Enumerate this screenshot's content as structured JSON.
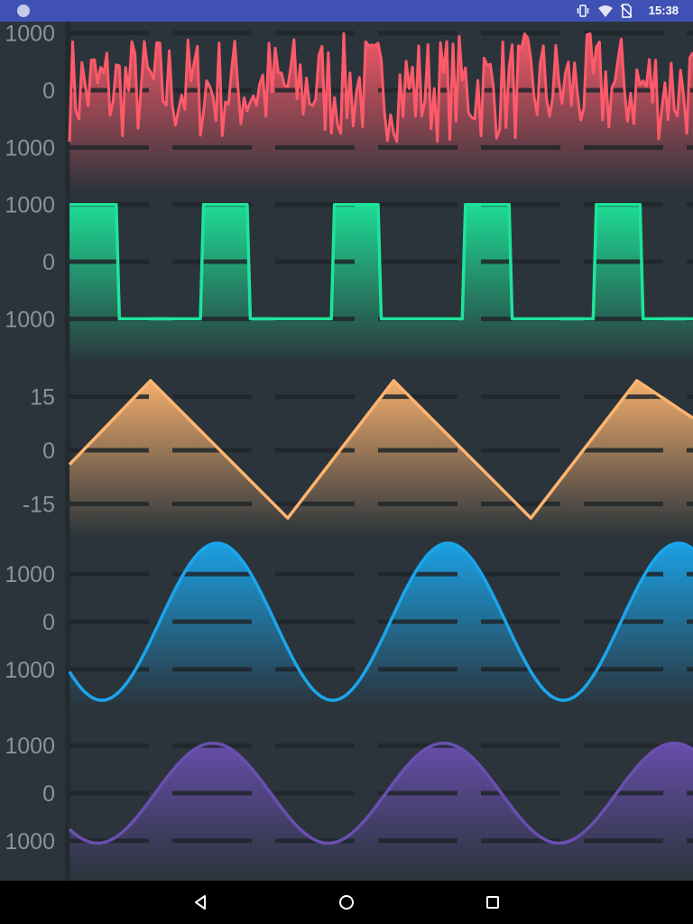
{
  "status_bar": {
    "time": "15:38",
    "icons": [
      "app-notification-icon",
      "vibrate-icon",
      "wifi-icon",
      "no-sim-icon"
    ]
  },
  "navigation_bar": {
    "buttons": [
      "back-icon",
      "home-icon",
      "recents-icon"
    ]
  },
  "colors": {
    "background": "#2b343b",
    "status_bar": "#3f51b5",
    "grid": "#1f262b",
    "noise": "#ff5a6a",
    "square": "#1de49a",
    "triangle": "#fdb46f",
    "sine": "#1aa6ec",
    "sine2": "#6a4fb0"
  },
  "chart_data": [
    {
      "type": "area",
      "name": "noise",
      "yticks": [
        1000,
        0,
        -1000
      ],
      "ytick_labels": [
        "1000",
        "0",
        "1000"
      ],
      "ylim": [
        -1800,
        1200
      ],
      "wave": "random",
      "samples": 200,
      "amplitude_range": [
        -900,
        1000
      ],
      "color": "#ff5a6a",
      "grid": true
    },
    {
      "type": "area",
      "name": "square",
      "yticks": [
        1000,
        0,
        -1000
      ],
      "ytick_labels": [
        "1000",
        "0",
        "1000"
      ],
      "ylim": [
        -1800,
        1200
      ],
      "wave": "square",
      "x": [
        0,
        0.075,
        0.21,
        0.285,
        0.42,
        0.495,
        0.63,
        0.705,
        0.84,
        0.915,
        1
      ],
      "values": [
        1000,
        -1000,
        1000,
        -1000,
        1000,
        -1000,
        1000,
        -1000,
        1000,
        -1000,
        1000
      ],
      "period": 0.21,
      "color": "#1de49a",
      "grid": true
    },
    {
      "type": "area",
      "name": "triangle",
      "yticks": [
        15,
        0,
        -15
      ],
      "ytick_labels": [
        "15",
        "0",
        "-15"
      ],
      "ylim": [
        -24,
        24
      ],
      "wave": "triangle",
      "x": [
        0,
        0.13,
        0.35,
        0.52,
        0.74,
        0.91,
        1
      ],
      "values": [
        -4,
        19.5,
        -19,
        19.5,
        -19,
        19.5,
        9
      ],
      "color": "#fdb46f",
      "grid": true
    },
    {
      "type": "area",
      "name": "sine",
      "yticks": [
        1000,
        0,
        -1000
      ],
      "ytick_labels": [
        "1000",
        "0",
        "1000"
      ],
      "ylim": [
        -1800,
        1800
      ],
      "wave": "sine",
      "amplitude": 1650,
      "period": 0.37,
      "phase_at_min": 0.052,
      "color": "#1aa6ec",
      "grid": true
    },
    {
      "type": "area",
      "name": "sine2",
      "yticks": [
        1000,
        0,
        -1000
      ],
      "ytick_labels": [
        "1000",
        "0",
        "1000"
      ],
      "ylim": [
        -1800,
        1800
      ],
      "wave": "sine",
      "amplitude": 1050,
      "period": 0.37,
      "phase_at_min": 0.045,
      "color": "#6a4fb0",
      "grid": true
    }
  ]
}
